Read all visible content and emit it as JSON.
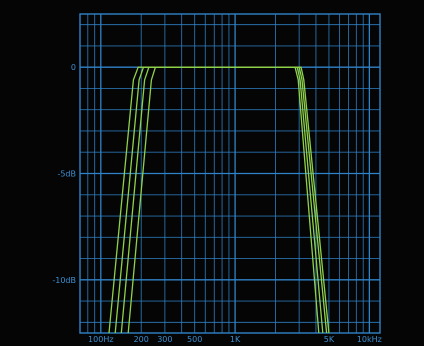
{
  "colors": {
    "background": "#050506",
    "grid": "#2f83c9",
    "axis_text": "#3d8fd0",
    "curve": "#8fd24a"
  },
  "chart_data": {
    "type": "line",
    "title": "",
    "xlabel": "",
    "ylabel": "",
    "x_scale": "log",
    "xlim": [
      70,
      12000
    ],
    "ylim": [
      -12.5,
      2.5
    ],
    "grid": true,
    "x_tick_labels": [
      {
        "value": 100,
        "label": "100Hz"
      },
      {
        "value": 200,
        "label": "200"
      },
      {
        "value": 300,
        "label": "300"
      },
      {
        "value": 500,
        "label": "500"
      },
      {
        "value": 1000,
        "label": "1K"
      },
      {
        "value": 5000,
        "label": "5K"
      },
      {
        "value": 10000,
        "label": "10kHz"
      }
    ],
    "y_tick_labels": [
      {
        "value": 0,
        "label": "0"
      },
      {
        "value": -5,
        "label": "-5dB"
      },
      {
        "value": -10,
        "label": "-10dB"
      }
    ],
    "series": [
      {
        "x": [
          115,
          175,
          190,
          2800,
          2950,
          4200
        ],
        "y": [
          -12.5,
          -0.6,
          0,
          0,
          -0.6,
          -12.5
        ]
      },
      {
        "x": [
          128,
          193,
          208,
          2900,
          3050,
          4500
        ],
        "y": [
          -12.5,
          -0.6,
          0,
          0,
          -0.6,
          -12.5
        ]
      },
      {
        "x": [
          142,
          212,
          228,
          3000,
          3150,
          4800
        ],
        "y": [
          -12.5,
          -0.6,
          0,
          0,
          -0.6,
          -12.5
        ]
      },
      {
        "x": [
          160,
          238,
          255,
          3100,
          3250,
          5000
        ],
        "y": [
          -12.5,
          -0.6,
          0,
          0,
          -0.6,
          -12.5
        ]
      }
    ]
  }
}
